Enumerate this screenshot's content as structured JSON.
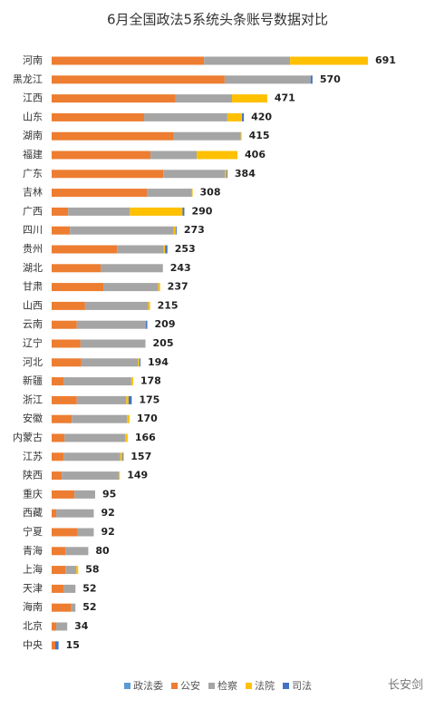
{
  "chart_data": {
    "type": "stacked-barh",
    "title": "6月全国政法5系统头条账号数据对比",
    "categories": [
      "河南",
      "黑龙江",
      "江西",
      "山东",
      "湖南",
      "福建",
      "广东",
      "吉林",
      "广西",
      "四川",
      "贵州",
      "湖北",
      "甘肃",
      "山西",
      "云南",
      "辽宁",
      "河北",
      "新疆",
      "浙江",
      "安徽",
      "内蒙古",
      "江苏",
      "陕西",
      "重庆",
      "西藏",
      "宁夏",
      "青海",
      "上海",
      "天津",
      "海南",
      "北京",
      "中央"
    ],
    "series": [
      {
        "name": "政法委",
        "color": "#5b9bd5",
        "values": [
          0,
          0,
          0,
          0,
          0,
          0,
          0,
          0,
          0,
          0,
          0,
          0,
          0,
          0,
          0,
          0,
          0,
          0,
          0,
          0,
          0,
          0,
          0,
          0,
          0,
          0,
          0,
          0,
          0,
          0,
          0,
          0
        ]
      },
      {
        "name": "公安",
        "color": "#ed7d31",
        "values": [
          333,
          378,
          271,
          202,
          267,
          216,
          244,
          208,
          36,
          40,
          143,
          107,
          113,
          73,
          55,
          63,
          65,
          26,
          55,
          44,
          28,
          26,
          22,
          50,
          10,
          57,
          30,
          30,
          26,
          43,
          10,
          8
        ]
      },
      {
        "name": "检察",
        "color": "#a5a5a5",
        "values": [
          188,
          188,
          123,
          182,
          146,
          101,
          135,
          98,
          135,
          227,
          102,
          136,
          120,
          138,
          151,
          142,
          124,
          148,
          108,
          121,
          133,
          124,
          125,
          45,
          82,
          35,
          50,
          24,
          26,
          9,
          24,
          0
        ]
      },
      {
        "name": "法院",
        "color": "#ffc000",
        "values": [
          170,
          0,
          77,
          32,
          2,
          89,
          3,
          2,
          115,
          4,
          3,
          0,
          4,
          4,
          0,
          0,
          3,
          4,
          5,
          5,
          5,
          5,
          2,
          0,
          0,
          0,
          0,
          4,
          0,
          0,
          0,
          0
        ]
      },
      {
        "name": "司法",
        "color": "#4472c4",
        "values": [
          0,
          4,
          0,
          4,
          0,
          0,
          2,
          0,
          4,
          2,
          5,
          0,
          0,
          0,
          3,
          0,
          2,
          0,
          7,
          0,
          0,
          2,
          0,
          0,
          0,
          0,
          0,
          0,
          0,
          0,
          0,
          7
        ]
      }
    ],
    "totals": [
      691,
      570,
      471,
      420,
      415,
      406,
      384,
      308,
      290,
      273,
      253,
      243,
      237,
      215,
      209,
      205,
      194,
      178,
      175,
      170,
      166,
      157,
      149,
      95,
      92,
      92,
      80,
      58,
      52,
      52,
      34,
      15
    ],
    "xlim": [
      0,
      700
    ],
    "watermark": "长安剑"
  }
}
